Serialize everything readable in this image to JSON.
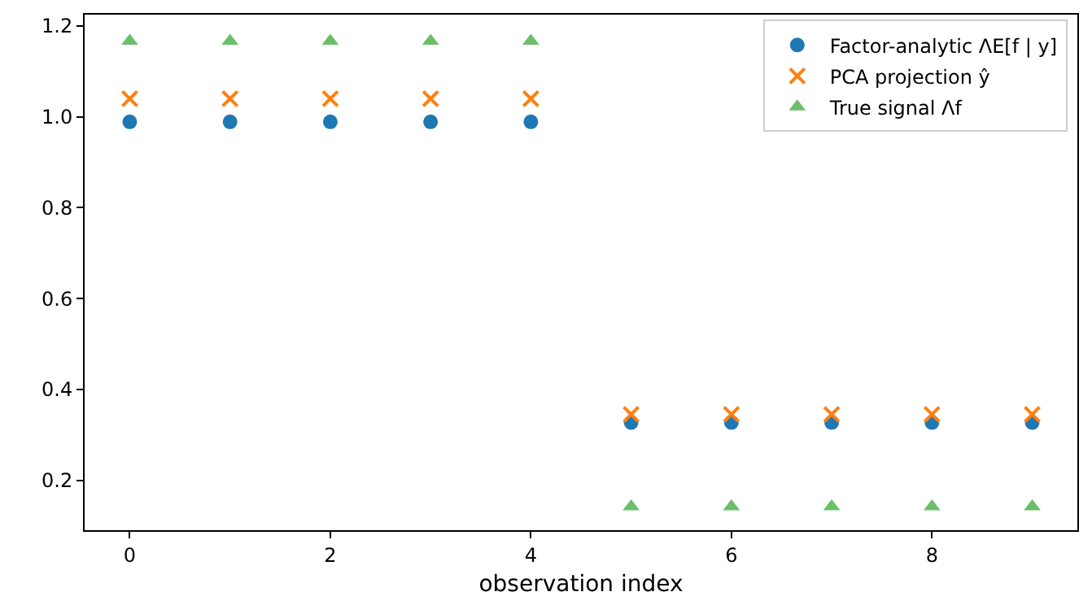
{
  "chart_data": {
    "type": "scatter",
    "xlabel": "observation index",
    "x": [
      0,
      1,
      2,
      3,
      4,
      5,
      6,
      7,
      8,
      9
    ],
    "series": [
      {
        "name": "Factor-analytic ΛE[f | y]",
        "color": "#1f77b4",
        "marker": "circle",
        "values": [
          0.989,
          0.989,
          0.989,
          0.989,
          0.989,
          0.327,
          0.327,
          0.327,
          0.327,
          0.327
        ]
      },
      {
        "name": "PCA projection ŷ",
        "color": "#ff7f0e",
        "marker": "cross",
        "values": [
          1.04,
          1.04,
          1.04,
          1.04,
          1.04,
          0.345,
          0.345,
          0.345,
          0.345,
          0.345
        ]
      },
      {
        "name": "True signal Λf",
        "color": "#6bbf6b",
        "marker": "triangle",
        "values": [
          1.167,
          1.167,
          1.167,
          1.167,
          1.167,
          0.142,
          0.142,
          0.142,
          0.142,
          0.142
        ]
      }
    ],
    "xlim": [
      -0.45,
      9.45
    ],
    "xticks": [
      0,
      2,
      4,
      6,
      8
    ],
    "ylim": [
      0.09,
      1.225
    ],
    "yticks": [
      0.2,
      0.4,
      0.6,
      0.8,
      {
        "value": 1,
        "label": "1.0"
      },
      1.2
    ],
    "grid": false,
    "legend": "top right"
  }
}
